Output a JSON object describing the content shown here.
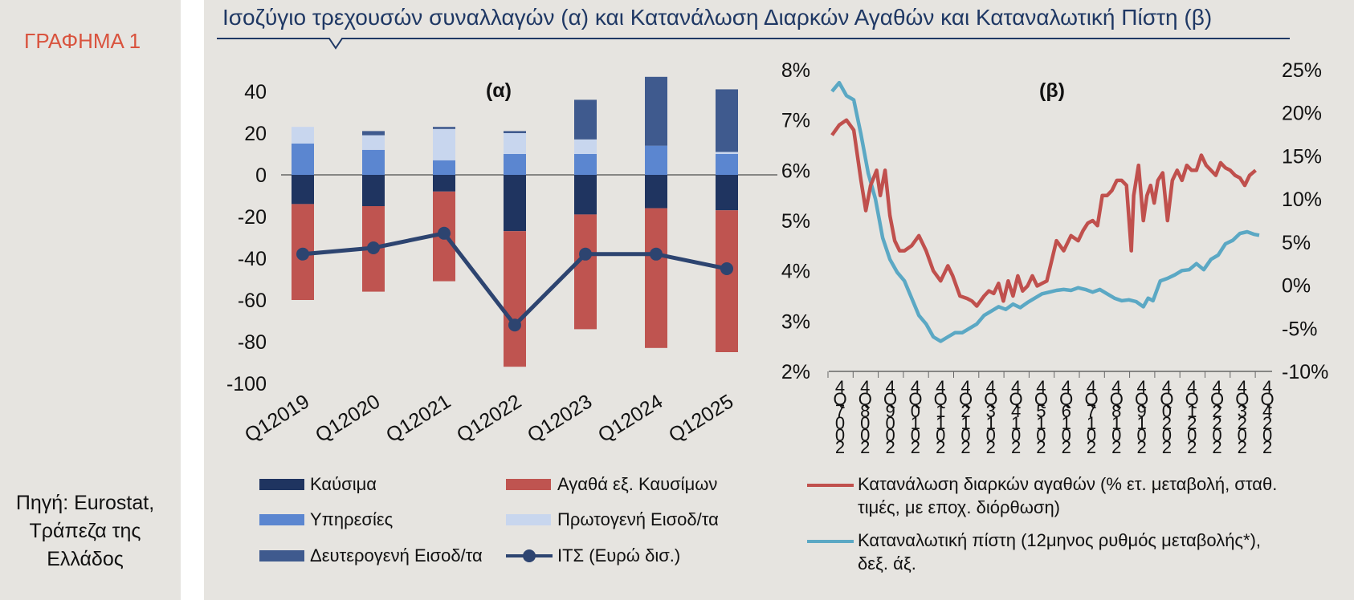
{
  "graph_label": "ΓΡΑΦΗΜΑ 1",
  "title": "Ισοζύγιο τρεχουσών συναλλαγών (α) και Κατανάλωση Διαρκών Αγαθών και Καταναλωτική Πίστη (β)",
  "source_line1": "Πηγή: Eurostat,",
  "source_line2": "Τράπεζα της",
  "source_line3": "Ελλάδος",
  "colors": {
    "fuels": "#1f3460",
    "goods": "#bf5450",
    "services": "#5b86d0",
    "primary": "#c8d6ee",
    "secondary": "#3f5a8e",
    "cab_line": "#2d4470",
    "durables": "#c0504d",
    "credit": "#5ba8c4",
    "title": "#1f3864",
    "label": "#d9533e"
  },
  "chart_data": [
    {
      "type": "bar",
      "stacked": true,
      "title": "(α)",
      "categories": [
        "Q12019",
        "Q12020",
        "Q12021",
        "Q12022",
        "Q12023",
        "Q12024",
        "Q12025"
      ],
      "ylim": [
        -100,
        40
      ],
      "yticks": [
        "40",
        "20",
        "0",
        "-20",
        "-40",
        "-60",
        "-80",
        "-100"
      ],
      "series": [
        {
          "name": "Καύσιμα",
          "values": [
            -14,
            -15,
            -8,
            -27,
            -19,
            -16,
            -17
          ]
        },
        {
          "name": "Αγαθά εξ. Καυσίμων",
          "values": [
            -46,
            -41,
            -43,
            -65,
            -55,
            -67,
            -68
          ]
        },
        {
          "name": "Υπηρεσίες",
          "values": [
            15,
            12,
            7,
            10,
            10,
            14,
            10
          ]
        },
        {
          "name": "Πρωτογενή Εισοδ/τα",
          "values": [
            8,
            7,
            15,
            10,
            7,
            0,
            1
          ]
        },
        {
          "name": "Δευτερογενή Εισοδ/τα",
          "values": [
            0,
            2,
            1,
            1,
            19,
            33,
            30
          ]
        }
      ],
      "line_series": {
        "name": "ΙΤΣ (Ευρώ δισ.)",
        "values": [
          -38,
          -35,
          -28,
          -72,
          -38,
          -38,
          -45
        ]
      },
      "legend": [
        "Καύσιμα",
        "Αγαθά εξ. Καυσίμων",
        "Υπηρεσίες",
        "Πρωτογενή Εισοδ/τα",
        "Δευτερογενή Εισοδ/τα",
        "ΙΤΣ (Ευρώ δισ.)"
      ],
      "legend_placement": "bottom",
      "grid": false
    },
    {
      "type": "line",
      "title": "(β)",
      "x_labels": [
        "4Q7002",
        "4Q8002",
        "4Q9002",
        "4Q0102",
        "4Q1102",
        "4Q2102",
        "4Q3102",
        "4Q4102",
        "4Q5102",
        "4Q6102",
        "4Q7102",
        "4Q8102",
        "4Q9102",
        "4Q0202",
        "4Q1202",
        "4Q2202",
        "4Q3202",
        "4Q4202"
      ],
      "x_range": [
        2007.0,
        2024.9
      ],
      "y_left_ticks": [
        "8%",
        "7%",
        "6%",
        "5%",
        "4%",
        "3%",
        "2%"
      ],
      "y_left_lim": [
        2,
        8
      ],
      "y_right_ticks": [
        "25%",
        "20%",
        "15%",
        "10%",
        "5%",
        "0%",
        "-5%",
        "-10%"
      ],
      "y_right_lim": [
        -10,
        25
      ],
      "series": [
        {
          "name": "Κατανάλωση διαρκών αγαθών (% ετ. μεταβολή, σταθ. τιμές, με εποχ. διόρθωση)",
          "axis": "left",
          "x": [
            2007.0,
            2007.3,
            2007.6,
            2007.9,
            2008.2,
            2008.4,
            2008.6,
            2008.85,
            2009.0,
            2009.2,
            2009.4,
            2009.6,
            2009.8,
            2010.0,
            2010.3,
            2010.6,
            2010.9,
            2011.2,
            2011.5,
            2011.8,
            2012.0,
            2012.3,
            2012.6,
            2012.8,
            2013.0,
            2013.3,
            2013.5,
            2013.7,
            2013.9,
            2014.1,
            2014.3,
            2014.5,
            2014.7,
            2014.9,
            2015.1,
            2015.3,
            2015.5,
            2015.7,
            2015.9,
            2016.1,
            2016.3,
            2016.6,
            2016.9,
            2017.2,
            2017.4,
            2017.6,
            2017.8,
            2018.0,
            2018.2,
            2018.4,
            2018.6,
            2018.8,
            2019.0,
            2019.2,
            2019.4,
            2019.5,
            2019.7,
            2019.9,
            2020.05,
            2020.2,
            2020.35,
            2020.5,
            2020.7,
            2020.9,
            2021.1,
            2021.3,
            2021.5,
            2021.7,
            2021.9,
            2022.1,
            2022.3,
            2022.5,
            2022.7,
            2022.9,
            2023.1,
            2023.3,
            2023.5,
            2023.7,
            2023.9,
            2024.1,
            2024.3,
            2024.55
          ],
          "values": [
            6.7,
            6.9,
            7.0,
            6.8,
            5.8,
            5.2,
            5.7,
            6.0,
            5.5,
            6.0,
            5.1,
            4.6,
            4.4,
            4.4,
            4.5,
            4.7,
            4.4,
            4.0,
            3.8,
            4.1,
            3.9,
            3.5,
            3.45,
            3.4,
            3.3,
            3.5,
            3.6,
            3.55,
            3.75,
            3.4,
            3.8,
            3.5,
            3.9,
            3.6,
            3.7,
            3.9,
            3.7,
            3.75,
            3.8,
            4.2,
            4.6,
            4.4,
            4.7,
            4.6,
            4.8,
            4.95,
            5.0,
            4.9,
            5.5,
            5.5,
            5.6,
            5.8,
            5.8,
            5.7,
            4.4,
            5.5,
            6.1,
            5.0,
            5.5,
            5.7,
            5.35,
            5.8,
            5.95,
            5.0,
            5.8,
            6.0,
            5.8,
            6.1,
            6.0,
            6.0,
            6.3,
            6.1,
            6.0,
            5.9,
            6.15,
            6.05,
            6.0,
            5.9,
            5.85,
            5.7,
            5.9,
            6.0
          ]
        },
        {
          "name": "Καταναλωτική πίστη (12μηνος ρυθμός μεταβολής*), δεξ. άξ.",
          "axis": "right",
          "x": [
            2007.0,
            2007.3,
            2007.6,
            2007.9,
            2008.2,
            2008.5,
            2008.8,
            2009.1,
            2009.4,
            2009.7,
            2010.0,
            2010.3,
            2010.6,
            2010.9,
            2011.2,
            2011.5,
            2011.8,
            2012.1,
            2012.4,
            2012.7,
            2013.0,
            2013.3,
            2013.6,
            2013.9,
            2014.2,
            2014.5,
            2014.8,
            2015.1,
            2015.4,
            2015.7,
            2016.0,
            2016.3,
            2016.6,
            2016.9,
            2017.2,
            2017.5,
            2017.8,
            2018.1,
            2018.4,
            2018.7,
            2019.0,
            2019.3,
            2019.6,
            2019.9,
            2020.1,
            2020.3,
            2020.6,
            2020.9,
            2021.2,
            2021.5,
            2021.8,
            2022.1,
            2022.4,
            2022.7,
            2023.0,
            2023.3,
            2023.6,
            2023.9,
            2024.2,
            2024.5,
            2024.7
          ],
          "values": [
            22.5,
            23.5,
            22.0,
            21.5,
            17.5,
            13.0,
            10.0,
            5.5,
            3.0,
            1.5,
            0.5,
            -1.5,
            -3.5,
            -4.5,
            -6.0,
            -6.5,
            -6.0,
            -5.5,
            -5.5,
            -5.0,
            -4.5,
            -3.5,
            -3.0,
            -2.5,
            -2.8,
            -2.2,
            -2.6,
            -2.0,
            -1.5,
            -1.0,
            -0.8,
            -0.6,
            -0.5,
            -0.6,
            -0.3,
            -0.5,
            -0.8,
            -0.5,
            -1.0,
            -1.5,
            -1.8,
            -1.7,
            -1.9,
            -2.5,
            -1.5,
            -1.8,
            0.5,
            0.8,
            1.2,
            1.7,
            1.8,
            2.5,
            1.8,
            3.0,
            3.5,
            4.8,
            5.2,
            6.0,
            6.2,
            5.9,
            5.8
          ]
        }
      ],
      "legend_placement": "bottom",
      "grid": false
    }
  ],
  "legend_beta": {
    "durables_line1": "Κατανάλωση διαρκών αγαθών (% ετ. μεταβολή, σταθ.",
    "durables_line2": "τιμές, με εποχ. διόρθωση)",
    "credit_line1": "Καταναλωτική πίστη (12μηνος ρυθμός μεταβολής*),",
    "credit_line2": "δεξ. άξ."
  }
}
